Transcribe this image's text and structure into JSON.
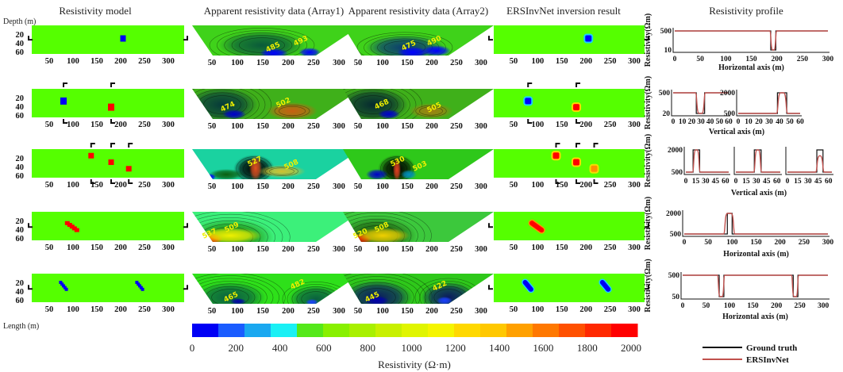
{
  "titles": {
    "model": "Resistivity model",
    "array1": "Apparent resistivity data (Array1)",
    "array2": "Apparent resistivity data (Array2)",
    "inversion": "ERSInvNet inversion result",
    "profile": "Resistivity profile"
  },
  "axis": {
    "depth_label": "Depth (m)",
    "length_label": "Length (m)",
    "x_ticks": [
      "50",
      "100",
      "150",
      "200",
      "250",
      "300"
    ],
    "x_tick_values": [
      50,
      100,
      150,
      200,
      250,
      300
    ],
    "depth_ticks": [
      "20",
      "40",
      "60"
    ],
    "depth_tick_values": [
      20,
      40,
      60
    ],
    "background_resistivity": 500,
    "profile_y_title": "Resistivity(Ωm)",
    "horizontal_axis": "Horizontal axis (m)",
    "vertical_axis": "Vertical axis (m)"
  },
  "rows": [
    {
      "anomalies": [
        {
          "x": 205,
          "depth": 30,
          "w": 7,
          "h": 8,
          "resistivity": 10
        }
      ],
      "profile_lines": {
        "orientation": "horizontal",
        "depth": 33
      },
      "array1_labels": [
        "485",
        "493"
      ],
      "array2_labels": [
        "475",
        "490"
      ],
      "profiles": [
        {
          "xmax": 300,
          "x_ticks": [
            "0",
            "50",
            "100",
            "150",
            "200",
            "250",
            "300"
          ],
          "y_ticks": [
            "500",
            "10"
          ],
          "y_vals": [
            500,
            10
          ],
          "background": 500,
          "truth": [
            {
              "from": 188,
              "to": 198,
              "value": 10
            }
          ],
          "pred": [
            {
              "from": 186,
              "to": 200,
              "value": 10,
              "ramp": 6
            }
          ]
        }
      ],
      "profile_axis": "horizontal"
    },
    {
      "anomalies": [
        {
          "x": 80,
          "depth": 28,
          "w": 8,
          "h": 9,
          "resistivity": 20
        },
        {
          "x": 180,
          "depth": 42,
          "w": 8,
          "h": 9,
          "resistivity": 2000
        }
      ],
      "profile_lines": {
        "orientation": "vertical",
        "x": [
          80,
          180
        ]
      },
      "array1_labels": [
        "474",
        "502"
      ],
      "array2_labels": [
        "468",
        "505"
      ],
      "profiles": [
        {
          "xmax": 60,
          "x_ticks": [
            "0",
            "10",
            "20",
            "30",
            "40",
            "50",
            "60"
          ],
          "y_ticks": [
            "500",
            "20"
          ],
          "y_vals": [
            500,
            20
          ],
          "background": 500,
          "truth": [
            {
              "from": 25,
              "to": 34,
              "value": 20
            }
          ],
          "pred": [
            {
              "from": 24,
              "to": 35,
              "value": 20,
              "ramp": 4
            }
          ]
        },
        {
          "xmax": 60,
          "x_ticks": [
            "0",
            "10",
            "20",
            "30",
            "40",
            "50",
            "60"
          ],
          "y_ticks": [
            "2000",
            "500"
          ],
          "y_vals": [
            2000,
            500
          ],
          "background": 500,
          "truth": [
            {
              "from": 38,
              "to": 47,
              "value": 2000
            }
          ],
          "pred": [
            {
              "from": 37,
              "to": 48,
              "value": 2000,
              "ramp": 4
            }
          ]
        }
      ],
      "profile_axis": "vertical"
    },
    {
      "anomalies": [
        {
          "x": 138,
          "depth": 15,
          "w": 7,
          "h": 7,
          "resistivity": 2000
        },
        {
          "x": 180,
          "depth": 30,
          "w": 7,
          "h": 7,
          "resistivity": 2000
        },
        {
          "x": 217,
          "depth": 45,
          "w": 7,
          "h": 7,
          "resistivity": 2000
        }
      ],
      "profile_lines": {
        "orientation": "vertical",
        "x": [
          138,
          180,
          217
        ]
      },
      "array1_labels": [
        "527",
        "508"
      ],
      "array2_labels": [
        "530",
        "503"
      ],
      "profiles": [
        {
          "xmax": 65,
          "x_ticks": [
            "0",
            "15",
            "30",
            "45",
            "60"
          ],
          "y_ticks": [
            "2000",
            "500"
          ],
          "y_vals": [
            2000,
            500
          ],
          "background": 500,
          "truth": [
            {
              "from": 11,
              "to": 21,
              "value": 2000
            }
          ],
          "pred": [
            {
              "from": 10,
              "to": 22,
              "value": 2000,
              "ramp": 5
            }
          ]
        },
        {
          "xmax": 65,
          "x_ticks": [
            "0",
            "15",
            "30",
            "45",
            "60"
          ],
          "y_ticks": [],
          "y_vals": [
            2000,
            500
          ],
          "background": 500,
          "truth": [
            {
              "from": 27,
              "to": 37,
              "value": 2000
            }
          ],
          "pred": [
            {
              "from": 26,
              "to": 38,
              "value": 2000,
              "ramp": 5
            }
          ]
        },
        {
          "xmax": 65,
          "x_ticks": [
            "0",
            "15",
            "30",
            "45",
            "60"
          ],
          "y_ticks": [],
          "y_vals": [
            2000,
            500
          ],
          "background": 500,
          "truth": [
            {
              "from": 43,
              "to": 52,
              "value": 2000
            }
          ],
          "pred": [
            {
              "from": 41,
              "to": 54,
              "value": 1600,
              "ramp": 6
            }
          ]
        }
      ],
      "profile_axis": "vertical"
    },
    {
      "anomalies": [
        {
          "x": 88,
          "depth": 26,
          "w": 6,
          "h": 5,
          "resistivity": 2000
        },
        {
          "x": 93,
          "depth": 30,
          "w": 6,
          "h": 5,
          "resistivity": 2000
        },
        {
          "x": 98,
          "depth": 34,
          "w": 6,
          "h": 5,
          "resistivity": 2000
        },
        {
          "x": 103,
          "depth": 38,
          "w": 6,
          "h": 5,
          "resistivity": 2000
        },
        {
          "x": 108,
          "depth": 42,
          "w": 6,
          "h": 5,
          "resistivity": 2000
        }
      ],
      "profile_lines": {
        "orientation": "horizontal",
        "depth": 35
      },
      "array1_labels": [
        "537",
        "509"
      ],
      "array2_labels": [
        "520",
        "508"
      ],
      "profiles": [
        {
          "xmax": 300,
          "x_ticks": [
            "0",
            "50",
            "100",
            "150",
            "200",
            "250",
            "300"
          ],
          "y_ticks": [
            "2000",
            "500"
          ],
          "y_vals": [
            2000,
            500
          ],
          "background": 500,
          "truth": [
            {
              "from": 90,
              "to": 100,
              "value": 2000
            }
          ],
          "pred": [
            {
              "from": 82,
              "to": 106,
              "value": 2000,
              "ramp": 8
            }
          ]
        }
      ],
      "profile_axis": "horizontal"
    },
    {
      "anomalies": [
        {
          "x": 74,
          "depth": 20,
          "w": 4,
          "h": 4,
          "resistivity": 50
        },
        {
          "x": 77,
          "depth": 24,
          "w": 4,
          "h": 4,
          "resistivity": 50
        },
        {
          "x": 80,
          "depth": 28,
          "w": 4,
          "h": 4,
          "resistivity": 50
        },
        {
          "x": 83,
          "depth": 32,
          "w": 4,
          "h": 4,
          "resistivity": 50
        },
        {
          "x": 86,
          "depth": 36,
          "w": 4,
          "h": 4,
          "resistivity": 50
        },
        {
          "x": 234,
          "depth": 20,
          "w": 4,
          "h": 4,
          "resistivity": 50
        },
        {
          "x": 237,
          "depth": 24,
          "w": 4,
          "h": 4,
          "resistivity": 50
        },
        {
          "x": 240,
          "depth": 28,
          "w": 4,
          "h": 4,
          "resistivity": 50
        },
        {
          "x": 243,
          "depth": 32,
          "w": 4,
          "h": 4,
          "resistivity": 50
        },
        {
          "x": 246,
          "depth": 36,
          "w": 4,
          "h": 4,
          "resistivity": 50
        }
      ],
      "profile_lines": {
        "orientation": "horizontal",
        "depth": 35
      },
      "array1_labels": [
        "465",
        "482"
      ],
      "array2_labels": [
        "445",
        "422"
      ],
      "profiles": [
        {
          "xmax": 310,
          "x_ticks": [
            "0",
            "50",
            "100",
            "150",
            "200",
            "250",
            "300"
          ],
          "y_ticks": [
            "500",
            "50"
          ],
          "y_vals": [
            500,
            50
          ],
          "background": 500,
          "truth": [
            {
              "from": 78,
              "to": 88,
              "value": 50
            },
            {
              "from": 236,
              "to": 246,
              "value": 50
            }
          ],
          "pred": [
            {
              "from": 74,
              "to": 90,
              "value": 50,
              "ramp": 6
            },
            {
              "from": 232,
              "to": 248,
              "value": 50,
              "ramp": 6
            }
          ]
        }
      ],
      "profile_axis": "horizontal"
    }
  ],
  "colorbar": {
    "ticks": [
      "0",
      "200",
      "400",
      "600",
      "800",
      "1000",
      "1200",
      "1400",
      "1600",
      "1800",
      "2000"
    ],
    "label": "Resistivity (Ω·m)",
    "range": [
      0,
      2000
    ],
    "colors": [
      "#0000f5",
      "#1a5cff",
      "#1aa8f0",
      "#1af0f5",
      "#55e81a",
      "#88f000",
      "#a8f000",
      "#c8f000",
      "#e0f500",
      "#f5f500",
      "#ffd800",
      "#ffc800",
      "#ffa000",
      "#ff7800",
      "#ff5000",
      "#ff2800",
      "#ff0000"
    ]
  },
  "legend": {
    "ground_truth": "Ground truth",
    "ersinvnet": "ERSInvNet",
    "ground_truth_color": "#111111",
    "ersinvnet_color": "#c0504d"
  },
  "model_background_color": "#55ff00"
}
